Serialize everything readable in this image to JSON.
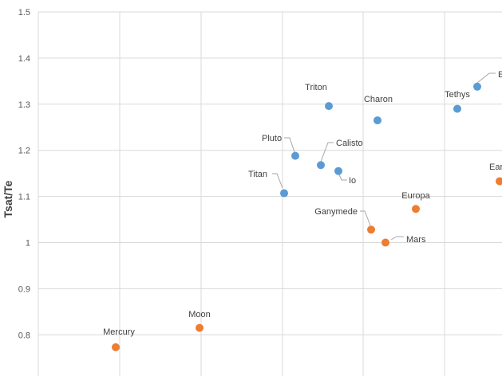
{
  "chart_data": {
    "type": "scatter",
    "ylabel": "Tsat/Te",
    "xlabel": "",
    "ylim": [
      0.7,
      1.5
    ],
    "yticks": [
      "0.8",
      "0.9",
      "1",
      "1.1",
      "1.2",
      "1.3",
      "1.4",
      "1.5"
    ],
    "grid": true,
    "colors": {
      "blue": "#5B9BD5",
      "orange": "#ED7D31"
    },
    "series": [
      {
        "color": "blue",
        "points": [
          {
            "label": "Titan",
            "y": 1.107
          },
          {
            "label": "Pluto",
            "y": 1.188
          },
          {
            "label": "Calisto",
            "y": 1.168
          },
          {
            "label": "Io",
            "y": 1.155
          },
          {
            "label": "Triton",
            "y": 1.296
          },
          {
            "label": "Charon",
            "y": 1.265
          },
          {
            "label": "Tethys",
            "y": 1.29
          },
          {
            "label": "E",
            "y": 1.338
          }
        ]
      },
      {
        "color": "orange",
        "points": [
          {
            "label": "Mercury",
            "y": 0.773
          },
          {
            "label": "Moon",
            "y": 0.815
          },
          {
            "label": "Ganymede",
            "y": 1.028
          },
          {
            "label": "Mars",
            "y": 1.0
          },
          {
            "label": "Europa",
            "y": 1.073
          },
          {
            "label": "Ear",
            "y": 1.133
          }
        ]
      }
    ]
  }
}
